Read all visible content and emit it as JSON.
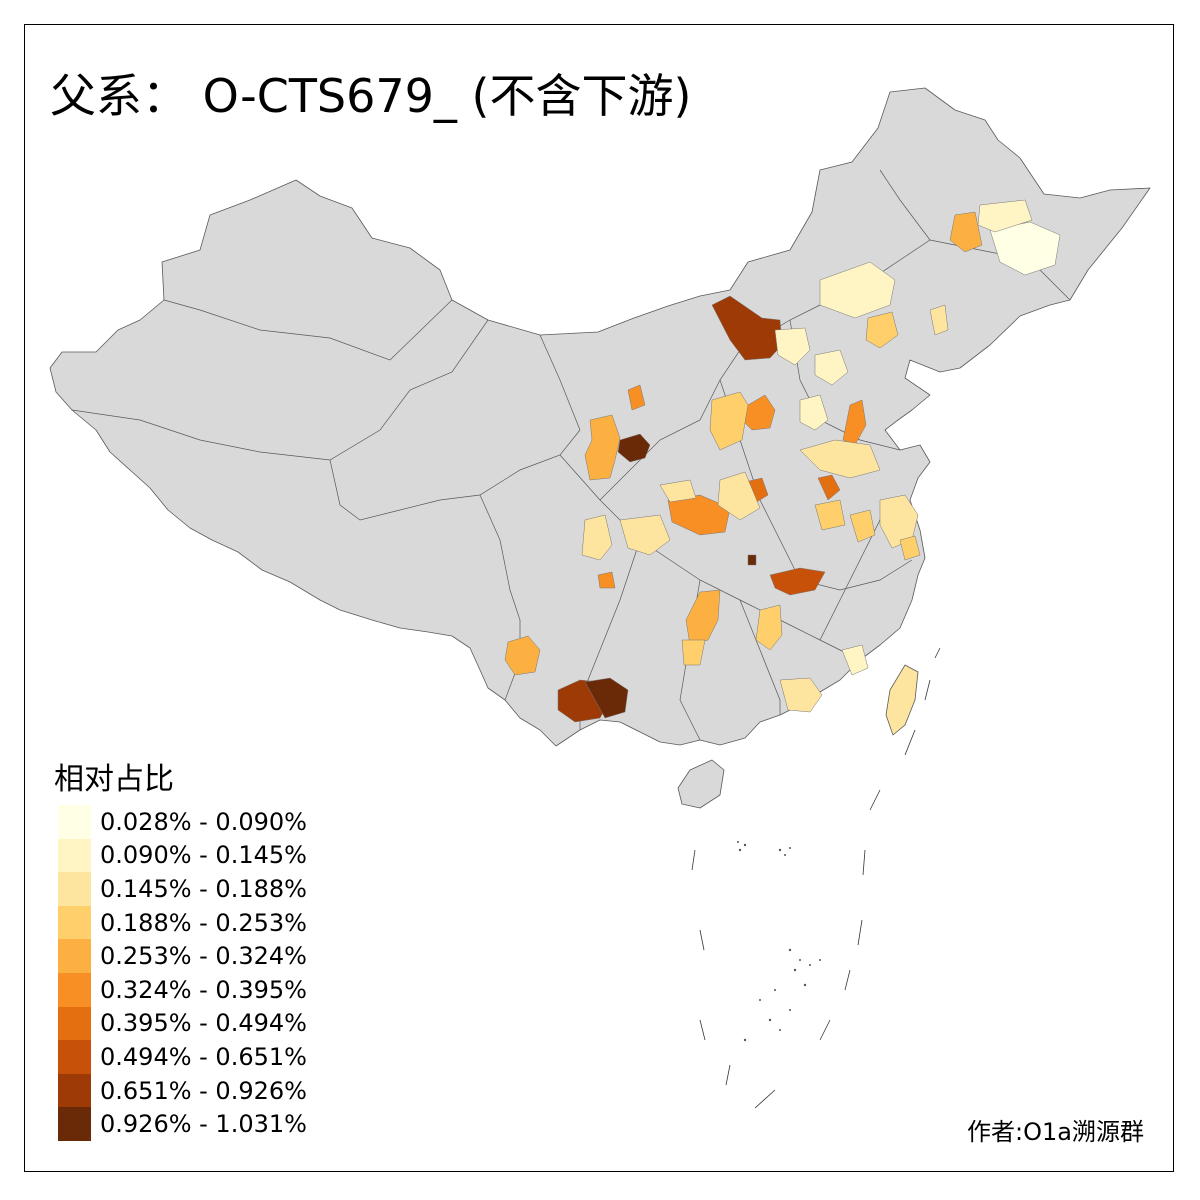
{
  "map": {
    "title": "父系： O-CTS679_ (不含下游)",
    "legend_title": "相对占比",
    "legend": [
      {
        "label": "0.028% - 0.090%",
        "color": "#FFFFE5"
      },
      {
        "label": "0.090% - 0.145%",
        "color": "#FFF4C4"
      },
      {
        "label": "0.145% - 0.188%",
        "color": "#FEE59F"
      },
      {
        "label": "0.188% - 0.253%",
        "color": "#FECF6A"
      },
      {
        "label": "0.253% - 0.324%",
        "color": "#FDB042"
      },
      {
        "label": "0.324% - 0.395%",
        "color": "#F88F25"
      },
      {
        "label": "0.395% - 0.494%",
        "color": "#E46F11"
      },
      {
        "label": "0.494% - 0.651%",
        "color": "#C75108"
      },
      {
        "label": "0.651% - 0.926%",
        "color": "#9E3A06"
      },
      {
        "label": "0.926% - 1.031%",
        "color": "#6A2A08"
      }
    ],
    "credit": "作者:O1a溯源群",
    "base_color": "#D9D9D9",
    "border_color": "#595959"
  }
}
